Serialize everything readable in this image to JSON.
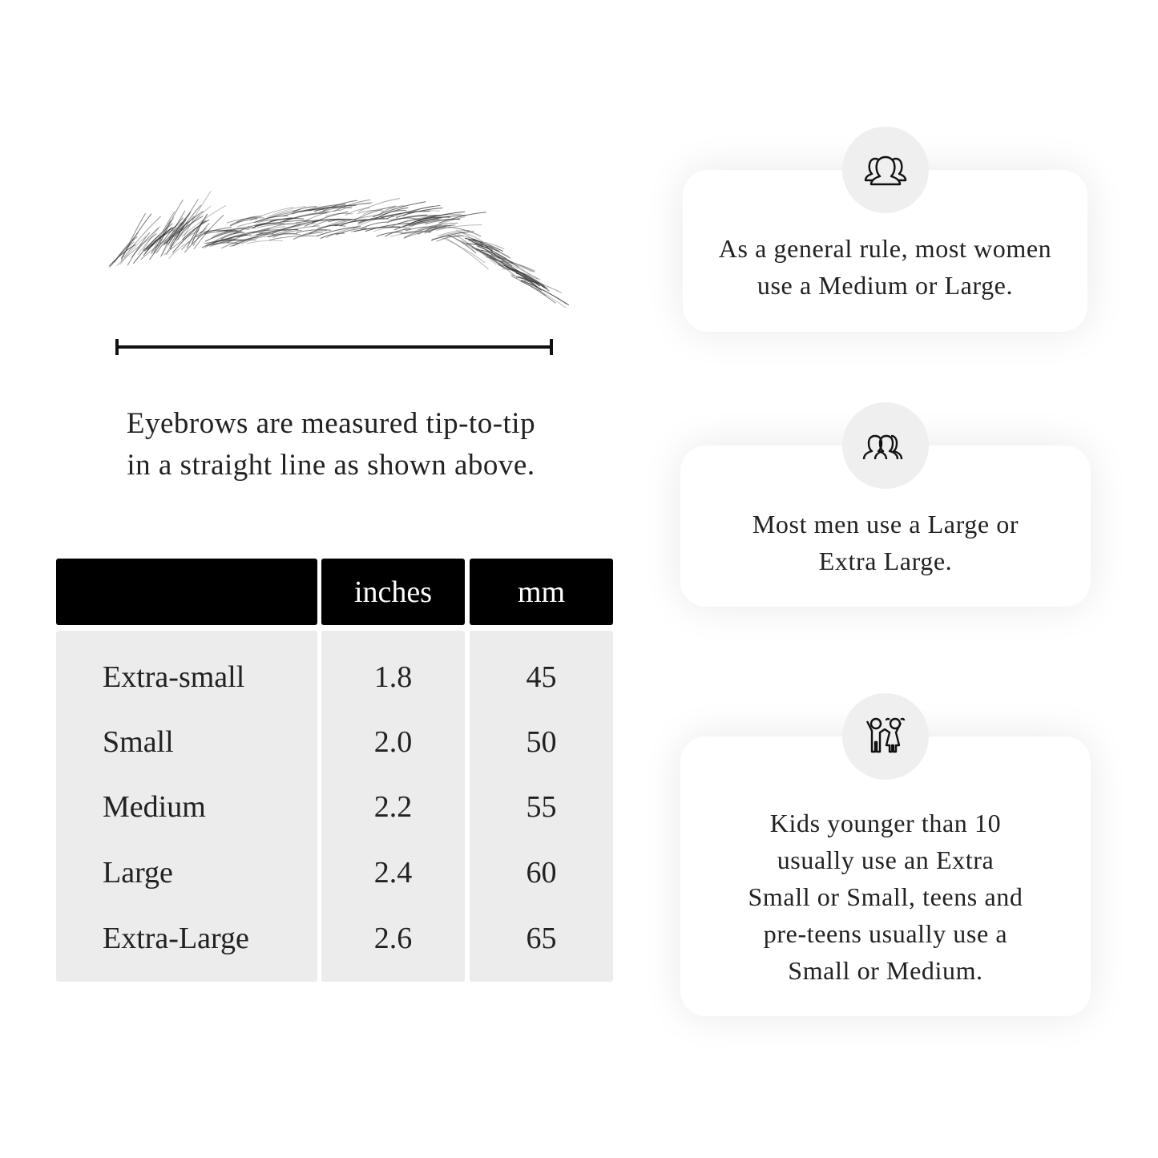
{
  "caption": {
    "line1": "Eyebrows are measured tip-to-tip",
    "line2": "in a straight line as shown above."
  },
  "table": {
    "headers": [
      "",
      "inches",
      "mm"
    ],
    "rows": [
      {
        "size": "Extra-small",
        "inches": "1.8",
        "mm": "45"
      },
      {
        "size": "Small",
        "inches": "2.0",
        "mm": "50"
      },
      {
        "size": "Medium",
        "inches": "2.2",
        "mm": "55"
      },
      {
        "size": "Large",
        "inches": "2.4",
        "mm": "60"
      },
      {
        "size": "Extra-Large",
        "inches": "2.6",
        "mm": "65"
      }
    ]
  },
  "cards": [
    {
      "icon": "women-group-icon",
      "lines": [
        "As a general rule, most women",
        "use a Medium or Large."
      ]
    },
    {
      "icon": "men-group-icon",
      "lines": [
        "Most men use a Large or",
        "Extra Large."
      ]
    },
    {
      "icon": "kids-icon",
      "lines": [
        "Kids younger than 10",
        "usually use an Extra",
        "Small or Small, teens and",
        "pre-teens usually use a",
        "Small or Medium."
      ]
    }
  ]
}
